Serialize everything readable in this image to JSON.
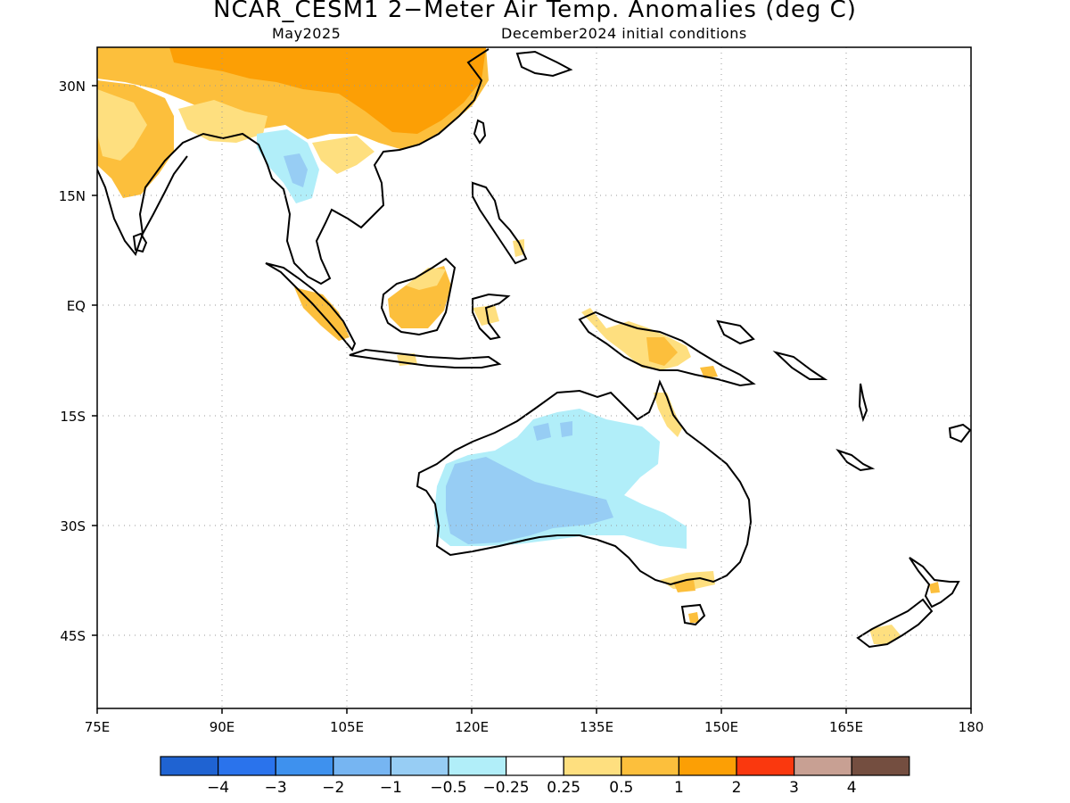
{
  "title": "NCAR_CESM1 2−Meter Air Temp. Anomalies (deg C)",
  "subtitle_left": "May2025",
  "subtitle_right": "December2024 initial conditions",
  "lat_labels": [
    "30N",
    "15N",
    "EQ",
    "15S",
    "30S",
    "45S"
  ],
  "lon_labels": [
    "75E",
    "90E",
    "105E",
    "120E",
    "135E",
    "150E",
    "165E",
    "180"
  ],
  "colorbar": {
    "colors": [
      "#1f63d2",
      "#2a73ec",
      "#3e91ee",
      "#76b5f2",
      "#97cdf4",
      "#b1eef9",
      "#ffffff",
      "#fedf7f",
      "#fcbf3c",
      "#fc9f05",
      "#fa380e",
      "#c8a093",
      "#744e40"
    ],
    "labels": [
      "−4",
      "−3",
      "−2",
      "−1",
      "−0.5",
      "−0.25",
      "0.25",
      "0.5",
      "1",
      "2",
      "3",
      "4"
    ]
  },
  "map_data": {
    "extent": {
      "lon": [
        75,
        180
      ],
      "lat": [
        -55,
        35
      ]
    },
    "gridlines": "dotted",
    "features": [
      {
        "name": "Tibetan Plateau / China",
        "anomaly_class": "1 to 2"
      },
      {
        "name": "India",
        "anomaly_class": "0.5 to 1"
      },
      {
        "name": "Myanmar / Thailand",
        "anomaly_class": "-0.5 to -0.25"
      },
      {
        "name": "Borneo",
        "anomaly_class": "0.5 to 1"
      },
      {
        "name": "Sumatra",
        "anomaly_class": "0.5 to 1"
      },
      {
        "name": "New Guinea",
        "anomaly_class": "0.25 to 1"
      },
      {
        "name": "Western Australia",
        "anomaly_class": "-1 to -0.5"
      },
      {
        "name": "Northern Australia",
        "anomaly_class": "-0.5 to -0.25"
      },
      {
        "name": "Victoria / Tasmania",
        "anomaly_class": "0.25 to 1"
      },
      {
        "name": "New Zealand South Island",
        "anomaly_class": "0.25 to 0.5"
      }
    ]
  }
}
